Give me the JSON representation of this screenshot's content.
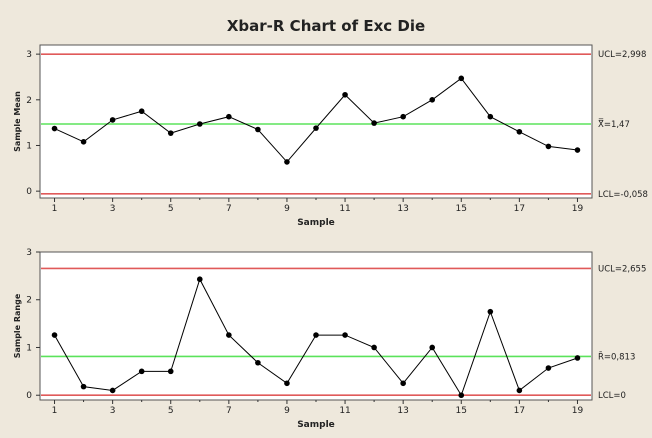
{
  "colors": {
    "background": "#eee8dc",
    "plot_background": "#ffffff",
    "control_limit": "#e05a5a",
    "center_line": "#5be35b",
    "data_line": "#000000",
    "text": "#222222"
  },
  "chart_data": [
    {
      "type": "line",
      "title": "Xbar-R Chart of Exc Die",
      "xlabel": "Sample",
      "ylabel": "Sample Mean",
      "ylim": [
        -0.15,
        3.2
      ],
      "yticks": [
        0,
        1,
        2,
        3
      ],
      "xticks": [
        1,
        3,
        5,
        7,
        9,
        11,
        13,
        15,
        17,
        19
      ],
      "x": [
        1,
        2,
        3,
        4,
        5,
        6,
        7,
        8,
        9,
        10,
        11,
        12,
        13,
        14,
        15,
        16,
        17,
        18,
        19
      ],
      "values": [
        1.37,
        1.08,
        1.56,
        1.75,
        1.27,
        1.47,
        1.63,
        1.35,
        0.64,
        1.38,
        2.11,
        1.49,
        1.63,
        2.0,
        2.47,
        1.63,
        1.3,
        0.98,
        0.9
      ],
      "ucl": 2.998,
      "center": 1.47,
      "lcl": -0.058,
      "ucl_label": "UCL=2,998",
      "center_label": "X̿=1,47",
      "lcl_label": "LCL=-0,058"
    },
    {
      "type": "line",
      "title": "",
      "xlabel": "Sample",
      "ylabel": "Sample Range",
      "ylim": [
        -0.1,
        3.0
      ],
      "yticks": [
        0,
        1,
        2,
        3
      ],
      "xticks": [
        1,
        3,
        5,
        7,
        9,
        11,
        13,
        15,
        17,
        19
      ],
      "x": [
        1,
        2,
        3,
        4,
        5,
        6,
        7,
        8,
        9,
        10,
        11,
        12,
        13,
        14,
        15,
        16,
        17,
        18,
        19
      ],
      "values": [
        1.26,
        0.18,
        0.1,
        0.5,
        0.5,
        2.43,
        1.26,
        0.68,
        0.25,
        1.26,
        1.26,
        1.0,
        0.25,
        1.0,
        0.0,
        1.75,
        0.1,
        0.57,
        0.78
      ],
      "ucl": 2.655,
      "center": 0.813,
      "lcl": 0,
      "ucl_label": "UCL=2,655",
      "center_label": "R̄=0,813",
      "lcl_label": "LCL=0"
    }
  ]
}
